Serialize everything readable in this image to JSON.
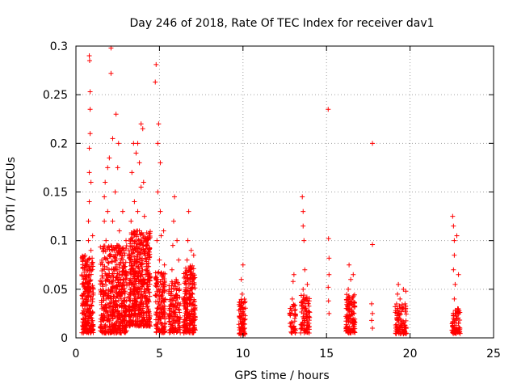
{
  "chart_data": {
    "type": "scatter",
    "title": "Day 246 of 2018, Rate Of TEC Index for receiver dav1",
    "xlabel": "GPS time / hours",
    "ylabel": "ROTI / TECUs",
    "xlim": [
      0,
      25
    ],
    "ylim": [
      0,
      0.3
    ],
    "x_ticks": [
      0,
      5,
      10,
      15,
      20,
      25
    ],
    "y_ticks": [
      0,
      0.05,
      0.1,
      0.15,
      0.2,
      0.25,
      0.3
    ],
    "x_tick_labels": [
      "0",
      "5",
      "10",
      "15",
      "20",
      "25"
    ],
    "y_tick_labels": [
      "0",
      "0.05",
      "0.1",
      "0.15",
      "0.2",
      "0.25",
      "0.3"
    ],
    "grid": true,
    "marker": "+",
    "colors": {
      "points": "#ff0000",
      "grid": "#a0a0a0",
      "axis": "#000000"
    },
    "series": [
      {
        "name": "ROTI",
        "points": [
          [
            0.45,
            0.012
          ],
          [
            0.5,
            0.025
          ],
          [
            0.5,
            0.045
          ],
          [
            0.55,
            0.06
          ],
          [
            0.6,
            0.035
          ],
          [
            0.6,
            0.07
          ],
          [
            0.65,
            0.015
          ],
          [
            0.7,
            0.055
          ],
          [
            0.7,
            0.08
          ],
          [
            0.75,
            0.1
          ],
          [
            0.75,
            0.12
          ],
          [
            0.8,
            0.03
          ],
          [
            0.8,
            0.065
          ],
          [
            0.8,
            0.14
          ],
          [
            0.8,
            0.17
          ],
          [
            0.8,
            0.195
          ],
          [
            0.8,
            0.29
          ],
          [
            0.82,
            0.285
          ],
          [
            0.85,
            0.253
          ],
          [
            0.85,
            0.235
          ],
          [
            0.85,
            0.21
          ],
          [
            0.9,
            0.05
          ],
          [
            0.9,
            0.09
          ],
          [
            0.9,
            0.16
          ],
          [
            0.95,
            0.02
          ],
          [
            0.95,
            0.075
          ],
          [
            1.0,
            0.04
          ],
          [
            1.0,
            0.105
          ],
          [
            1.5,
            0.01
          ],
          [
            1.55,
            0.03
          ],
          [
            1.6,
            0.055
          ],
          [
            1.6,
            0.075
          ],
          [
            1.65,
            0.09
          ],
          [
            1.7,
            0.12
          ],
          [
            1.7,
            0.145
          ],
          [
            1.75,
            0.16
          ],
          [
            1.8,
            0.04
          ],
          [
            1.8,
            0.1
          ],
          [
            1.85,
            0.065
          ],
          [
            1.9,
            0.13
          ],
          [
            1.9,
            0.175
          ],
          [
            1.95,
            0.02
          ],
          [
            2.0,
            0.185
          ],
          [
            2.0,
            0.085
          ],
          [
            2.1,
            0.298
          ],
          [
            2.1,
            0.272
          ],
          [
            2.1,
            0.05
          ],
          [
            2.2,
            0.12
          ],
          [
            2.2,
            0.205
          ],
          [
            2.3,
            0.035
          ],
          [
            2.3,
            0.07
          ],
          [
            2.35,
            0.15
          ],
          [
            2.4,
            0.23
          ],
          [
            2.45,
            0.095
          ],
          [
            2.5,
            0.06
          ],
          [
            2.5,
            0.175
          ],
          [
            2.55,
            0.2
          ],
          [
            2.6,
            0.11
          ],
          [
            2.6,
            0.025
          ],
          [
            2.7,
            0.045
          ],
          [
            2.7,
            0.08
          ],
          [
            2.8,
            0.015
          ],
          [
            2.8,
            0.13
          ],
          [
            2.9,
            0.065
          ],
          [
            3.0,
            0.1
          ],
          [
            3.0,
            0.03
          ],
          [
            3.2,
            0.04
          ],
          [
            3.25,
            0.07
          ],
          [
            3.3,
            0.12
          ],
          [
            3.35,
            0.17
          ],
          [
            3.4,
            0.055
          ],
          [
            3.4,
            0.1
          ],
          [
            3.45,
            0.2
          ],
          [
            3.5,
            0.08
          ],
          [
            3.5,
            0.14
          ],
          [
            3.55,
            0.03
          ],
          [
            3.6,
            0.09
          ],
          [
            3.6,
            0.19
          ],
          [
            3.65,
            0.06
          ],
          [
            3.7,
            0.13
          ],
          [
            3.7,
            0.2
          ],
          [
            3.75,
            0.045
          ],
          [
            3.8,
            0.11
          ],
          [
            3.8,
            0.18
          ],
          [
            3.85,
            0.075
          ],
          [
            3.9,
            0.22
          ],
          [
            3.9,
            0.155
          ],
          [
            3.95,
            0.025
          ],
          [
            4.0,
            0.215
          ],
          [
            4.0,
            0.095
          ],
          [
            4.05,
            0.16
          ],
          [
            4.1,
            0.05
          ],
          [
            4.1,
            0.125
          ],
          [
            4.15,
            0.07
          ],
          [
            4.2,
            0.1
          ],
          [
            4.2,
            0.035
          ],
          [
            4.3,
            0.085
          ],
          [
            4.35,
            0.05
          ],
          [
            4.4,
            0.02
          ],
          [
            4.75,
            0.263
          ],
          [
            4.8,
            0.281
          ],
          [
            4.85,
            0.06
          ],
          [
            4.85,
            0.1
          ],
          [
            4.9,
            0.15
          ],
          [
            4.9,
            0.2
          ],
          [
            4.95,
            0.22
          ],
          [
            5.0,
            0.04
          ],
          [
            5.0,
            0.08
          ],
          [
            5.05,
            0.13
          ],
          [
            5.05,
            0.18
          ],
          [
            5.1,
            0.02
          ],
          [
            5.1,
            0.105
          ],
          [
            5.15,
            0.065
          ],
          [
            5.2,
            0.05
          ],
          [
            5.25,
            0.11
          ],
          [
            5.3,
            0.03
          ],
          [
            5.3,
            0.075
          ],
          [
            5.6,
            0.025
          ],
          [
            5.7,
            0.045
          ],
          [
            5.75,
            0.07
          ],
          [
            5.8,
            0.095
          ],
          [
            5.85,
            0.12
          ],
          [
            5.9,
            0.145
          ],
          [
            5.95,
            0.035
          ],
          [
            6.0,
            0.06
          ],
          [
            6.05,
            0.1
          ],
          [
            6.1,
            0.015
          ],
          [
            6.15,
            0.08
          ],
          [
            6.2,
            0.05
          ],
          [
            6.5,
            0.01
          ],
          [
            6.55,
            0.03
          ],
          [
            6.6,
            0.055
          ],
          [
            6.65,
            0.08
          ],
          [
            6.7,
            0.1
          ],
          [
            6.75,
            0.13
          ],
          [
            6.8,
            0.04
          ],
          [
            6.85,
            0.07
          ],
          [
            6.9,
            0.09
          ],
          [
            6.95,
            0.02
          ],
          [
            7.0,
            0.06
          ],
          [
            7.05,
            0.085
          ],
          [
            7.1,
            0.03
          ],
          [
            9.8,
            0.005
          ],
          [
            9.85,
            0.02
          ],
          [
            9.9,
            0.035
          ],
          [
            9.9,
            0.06
          ],
          [
            9.95,
            0.045
          ],
          [
            10.0,
            0.015
          ],
          [
            10.0,
            0.075
          ],
          [
            10.05,
            0.03
          ],
          [
            10.1,
            0.01
          ],
          [
            12.85,
            0.012
          ],
          [
            12.9,
            0.028
          ],
          [
            12.95,
            0.04
          ],
          [
            13.0,
            0.058
          ],
          [
            13.05,
            0.065
          ],
          [
            13.1,
            0.02
          ],
          [
            13.5,
            0.01
          ],
          [
            13.55,
            0.03
          ],
          [
            13.55,
            0.145
          ],
          [
            13.6,
            0.05
          ],
          [
            13.6,
            0.13
          ],
          [
            13.6,
            0.115
          ],
          [
            13.65,
            0.1
          ],
          [
            13.7,
            0.07
          ],
          [
            13.75,
            0.04
          ],
          [
            13.8,
            0.02
          ],
          [
            13.85,
            0.055
          ],
          [
            13.9,
            0.035
          ],
          [
            13.95,
            0.015
          ],
          [
            15.1,
            0.235
          ],
          [
            15.12,
            0.102
          ],
          [
            15.15,
            0.082
          ],
          [
            15.15,
            0.065
          ],
          [
            15.1,
            0.052
          ],
          [
            15.12,
            0.038
          ],
          [
            15.15,
            0.025
          ],
          [
            16.2,
            0.01
          ],
          [
            16.25,
            0.03
          ],
          [
            16.3,
            0.05
          ],
          [
            16.35,
            0.075
          ],
          [
            16.4,
            0.02
          ],
          [
            16.45,
            0.06
          ],
          [
            16.5,
            0.04
          ],
          [
            16.55,
            0.015
          ],
          [
            16.6,
            0.065
          ],
          [
            16.65,
            0.025
          ],
          [
            17.75,
            0.2
          ],
          [
            17.75,
            0.096
          ],
          [
            17.7,
            0.035
          ],
          [
            17.75,
            0.025
          ],
          [
            17.7,
            0.018
          ],
          [
            17.75,
            0.01
          ],
          [
            19.15,
            0.01
          ],
          [
            19.2,
            0.025
          ],
          [
            19.25,
            0.045
          ],
          [
            19.3,
            0.055
          ],
          [
            19.35,
            0.02
          ],
          [
            19.4,
            0.04
          ],
          [
            19.5,
            0.015
          ],
          [
            19.55,
            0.03
          ],
          [
            19.6,
            0.05
          ],
          [
            19.65,
            0.008
          ],
          [
            19.7,
            0.035
          ],
          [
            19.75,
            0.048
          ],
          [
            22.55,
            0.125
          ],
          [
            22.6,
            0.115
          ],
          [
            22.65,
            0.1
          ],
          [
            22.65,
            0.085
          ],
          [
            22.6,
            0.07
          ],
          [
            22.7,
            0.055
          ],
          [
            22.65,
            0.04
          ],
          [
            22.7,
            0.025
          ],
          [
            22.75,
            0.01
          ],
          [
            22.8,
            0.105
          ],
          [
            22.85,
            0.03
          ],
          [
            22.9,
            0.015
          ],
          [
            22.9,
            0.065
          ]
        ]
      }
    ],
    "dense_bands": [
      {
        "x0": 0.35,
        "x1": 1.05,
        "ymin": 0.005,
        "ymax": 0.085,
        "n": 240
      },
      {
        "x0": 1.45,
        "x1": 3.05,
        "ymin": 0.005,
        "ymax": 0.095,
        "n": 520
      },
      {
        "x0": 3.15,
        "x1": 4.45,
        "ymin": 0.012,
        "ymax": 0.11,
        "n": 520
      },
      {
        "x0": 4.75,
        "x1": 5.35,
        "ymin": 0.005,
        "ymax": 0.07,
        "n": 150
      },
      {
        "x0": 5.55,
        "x1": 6.25,
        "ymin": 0.005,
        "ymax": 0.06,
        "n": 130
      },
      {
        "x0": 6.45,
        "x1": 7.15,
        "ymin": 0.005,
        "ymax": 0.075,
        "n": 240
      },
      {
        "x0": 9.75,
        "x1": 10.15,
        "ymin": 0.003,
        "ymax": 0.04,
        "n": 80
      },
      {
        "x0": 12.8,
        "x1": 13.15,
        "ymin": 0.005,
        "ymax": 0.035,
        "n": 40
      },
      {
        "x0": 13.45,
        "x1": 14.0,
        "ymin": 0.005,
        "ymax": 0.045,
        "n": 80
      },
      {
        "x0": 16.15,
        "x1": 16.7,
        "ymin": 0.005,
        "ymax": 0.045,
        "n": 110
      },
      {
        "x0": 19.1,
        "x1": 19.8,
        "ymin": 0.004,
        "ymax": 0.035,
        "n": 100
      },
      {
        "x0": 22.5,
        "x1": 23.0,
        "ymin": 0.004,
        "ymax": 0.03,
        "n": 70
      }
    ]
  }
}
